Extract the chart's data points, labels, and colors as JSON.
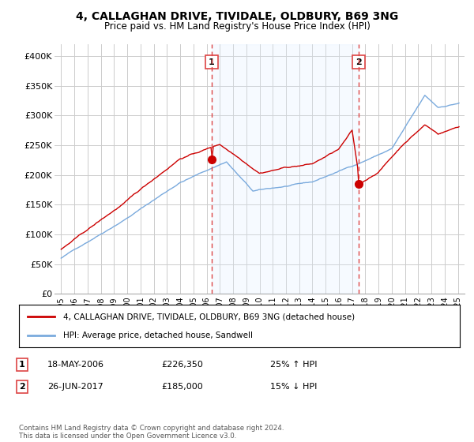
{
  "title": "4, CALLAGHAN DRIVE, TIVIDALE, OLDBURY, B69 3NG",
  "subtitle": "Price paid vs. HM Land Registry's House Price Index (HPI)",
  "legend_line1": "4, CALLAGHAN DRIVE, TIVIDALE, OLDBURY, B69 3NG (detached house)",
  "legend_line2": "HPI: Average price, detached house, Sandwell",
  "annotation1_date": "18-MAY-2006",
  "annotation1_price": "£226,350",
  "annotation1_hpi": "25% ↑ HPI",
  "annotation2_date": "26-JUN-2017",
  "annotation2_price": "£185,000",
  "annotation2_hpi": "15% ↓ HPI",
  "footnote": "Contains HM Land Registry data © Crown copyright and database right 2024.\nThis data is licensed under the Open Government Licence v3.0.",
  "sale1_x": 2006.38,
  "sale1_y": 226350,
  "sale2_x": 2017.49,
  "sale2_y": 185000,
  "hpi_color": "#7aaadd",
  "price_color": "#cc0000",
  "shade_color": "#ddeeff",
  "annotation_line_color": "#dd4444",
  "background_color": "#ffffff",
  "grid_color": "#cccccc",
  "ylim": [
    0,
    420000
  ],
  "xlim": [
    1994.5,
    2025.5
  ],
  "yticks": [
    0,
    50000,
    100000,
    150000,
    200000,
    250000,
    300000,
    350000,
    400000
  ],
  "ytick_labels": [
    "£0",
    "£50K",
    "£100K",
    "£150K",
    "£200K",
    "£250K",
    "£300K",
    "£350K",
    "£400K"
  ],
  "xticks": [
    1995,
    1996,
    1997,
    1998,
    1999,
    2000,
    2001,
    2002,
    2003,
    2004,
    2005,
    2006,
    2007,
    2008,
    2009,
    2010,
    2011,
    2012,
    2013,
    2014,
    2015,
    2016,
    2017,
    2018,
    2019,
    2020,
    2021,
    2022,
    2023,
    2024,
    2025
  ]
}
